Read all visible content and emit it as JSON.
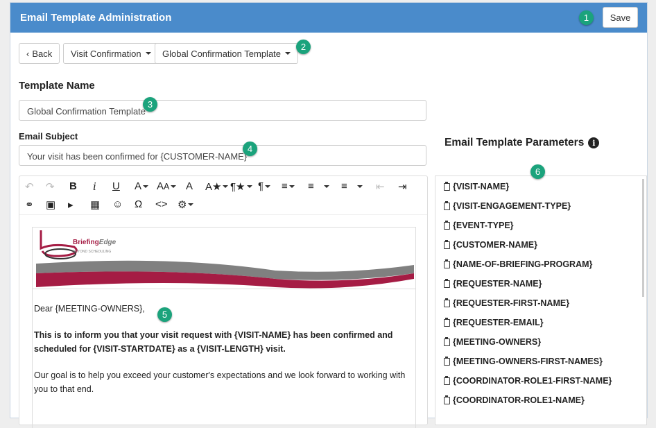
{
  "header": {
    "title": "Email Template Administration",
    "save_label": "Save"
  },
  "toolbar": {
    "back_label": "Back",
    "visit_dropdown": "Visit Confirmation",
    "template_dropdown": "Global Confirmation Template"
  },
  "template_name": {
    "label": "Template Name",
    "value": "Global Confirmation Template"
  },
  "email_subject": {
    "label": "Email Subject",
    "value": "Your visit has been confirmed for {CUSTOMER-NAME}"
  },
  "editor": {
    "logo_text": "BriefingEdge",
    "logo_tagline": "BEYOND SCHEDULING",
    "greeting": "Dear {MEETING-OWNERS},",
    "bold_paragraph": "This is to inform you that your visit request with {VISIT-NAME} has been confirmed and scheduled for {VISIT-STARTDATE} as a {VISIT-LENGTH} visit.",
    "paragraph": "Our goal is to help you exceed your customer's expectations and we look forward to working with you to that end.",
    "brand_colors": {
      "red": "#a51c44",
      "gray": "#808080"
    }
  },
  "parameters": {
    "title": "Email Template Parameters",
    "items": [
      "{VISIT-NAME}",
      "{VISIT-ENGAGEMENT-TYPE}",
      "{EVENT-TYPE}",
      "{CUSTOMER-NAME}",
      "{NAME-OF-BRIEFING-PROGRAM}",
      "{REQUESTER-NAME}",
      "{REQUESTER-FIRST-NAME}",
      "{REQUESTER-EMAIL}",
      "{MEETING-OWNERS}",
      "{MEETING-OWNERS-FIRST-NAMES}",
      "{COORDINATOR-ROLE1-FIRST-NAME}",
      "{COORDINATOR-ROLE1-NAME}"
    ]
  },
  "badges": [
    "1",
    "2",
    "3",
    "4",
    "5",
    "6"
  ],
  "colors": {
    "header": "#4a8bcb",
    "badge": "#1ba37c"
  }
}
